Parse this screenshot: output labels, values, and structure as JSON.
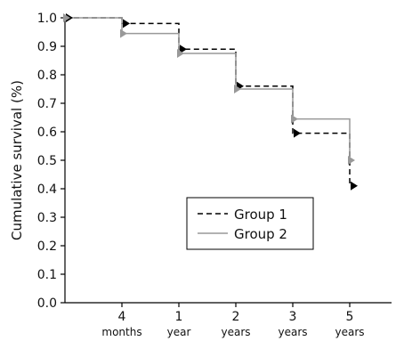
{
  "chart_data": {
    "type": "line",
    "ylabel": "Cumulative survival (%)",
    "ylim": [
      0.0,
      1.0
    ],
    "y_ticks": [
      "0.0",
      "0.1",
      "0.2",
      "0.3",
      "0.4",
      "0.5",
      "0.6",
      "0.7",
      "0.8",
      "0.9",
      "1.0"
    ],
    "x_ticks": [
      {
        "main": "4",
        "sub": "months"
      },
      {
        "main": "1",
        "sub": "year"
      },
      {
        "main": "2",
        "sub": "years"
      },
      {
        "main": "3",
        "sub": "years"
      },
      {
        "main": "5",
        "sub": "years"
      }
    ],
    "step": true,
    "series": [
      {
        "name": "Group 1",
        "color": "#000000",
        "style": "dashed",
        "points": [
          {
            "x": 0,
            "y": 1.0
          },
          {
            "x": 4,
            "y": 0.98
          },
          {
            "x": 12,
            "y": 0.89
          },
          {
            "x": 24,
            "y": 0.76
          },
          {
            "x": 36,
            "y": 0.595
          },
          {
            "x": 60,
            "y": 0.41
          }
        ]
      },
      {
        "name": "Group 2",
        "color": "#999999",
        "style": "solid",
        "points": [
          {
            "x": 0,
            "y": 1.0
          },
          {
            "x": 4,
            "y": 0.945
          },
          {
            "x": 12,
            "y": 0.875
          },
          {
            "x": 24,
            "y": 0.75
          },
          {
            "x": 36,
            "y": 0.645
          },
          {
            "x": 60,
            "y": 0.5
          }
        ]
      }
    ],
    "legend": {
      "position": "bottom-right-inside"
    }
  }
}
